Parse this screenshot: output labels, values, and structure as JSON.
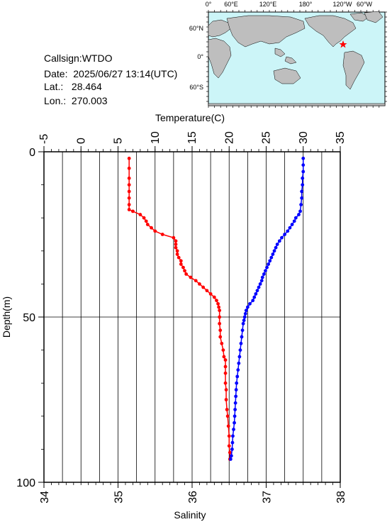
{
  "station": {
    "callsign_label": "Callsign:",
    "callsign": "WTDO",
    "date_label": "Date:",
    "date": "2025/06/27 13:14(UTC)",
    "lat_label": "Lat.:",
    "lat": "28.464",
    "lon_label": "Lon.:",
    "lon": "270.003"
  },
  "map": {
    "lon_ticks": [
      "0°",
      "60°E",
      "120°E",
      "180°",
      "120°W",
      "60°W"
    ],
    "lat_ticks": [
      "60°N",
      "0°",
      "60°S"
    ],
    "marker_color": "#ff0000",
    "ocean_color": "#ccf5f8",
    "land_color": "#bebebe"
  },
  "chart_data": {
    "type": "line",
    "title": "",
    "top_axis": {
      "label": "Temperature(C)",
      "range": [
        -5,
        35
      ],
      "ticks": [
        "-5",
        "0",
        "5",
        "10",
        "15",
        "20",
        "25",
        "30",
        "35"
      ]
    },
    "bottom_axis": {
      "label": "Salinity",
      "range": [
        34,
        38
      ],
      "ticks": [
        "34",
        "35",
        "36",
        "37",
        "38"
      ]
    },
    "y_axis": {
      "label": "Depth(m)",
      "range": [
        0,
        100
      ],
      "inverted": true,
      "ticks": [
        "0",
        "50",
        "100"
      ]
    },
    "grid": true,
    "series": [
      {
        "axis": "salinity",
        "color": "#ff0000",
        "points": [
          [
            35.15,
            2
          ],
          [
            35.15,
            5
          ],
          [
            35.15,
            8
          ],
          [
            35.15,
            10
          ],
          [
            35.15,
            12
          ],
          [
            35.15,
            14
          ],
          [
            35.15,
            16
          ],
          [
            35.15,
            17.5
          ],
          [
            35.2,
            18
          ],
          [
            35.3,
            19
          ],
          [
            35.35,
            20
          ],
          [
            35.38,
            21
          ],
          [
            35.4,
            22
          ],
          [
            35.45,
            23
          ],
          [
            35.5,
            24
          ],
          [
            35.6,
            25
          ],
          [
            35.75,
            26
          ],
          [
            35.78,
            27
          ],
          [
            35.78,
            28
          ],
          [
            35.78,
            29
          ],
          [
            35.8,
            30
          ],
          [
            35.8,
            31
          ],
          [
            35.82,
            32
          ],
          [
            35.85,
            33
          ],
          [
            35.85,
            34
          ],
          [
            35.88,
            35
          ],
          [
            35.9,
            36
          ],
          [
            35.92,
            37
          ],
          [
            35.98,
            38
          ],
          [
            36.05,
            39
          ],
          [
            36.1,
            40
          ],
          [
            36.15,
            41
          ],
          [
            36.2,
            42
          ],
          [
            36.25,
            43
          ],
          [
            36.3,
            44
          ],
          [
            36.33,
            45
          ],
          [
            36.35,
            46
          ],
          [
            36.36,
            47
          ],
          [
            36.37,
            48
          ],
          [
            36.37,
            50
          ],
          [
            36.37,
            52
          ],
          [
            36.38,
            54
          ],
          [
            36.38,
            56
          ],
          [
            36.4,
            58
          ],
          [
            36.42,
            60
          ],
          [
            36.43,
            62
          ],
          [
            36.45,
            63
          ],
          [
            36.45,
            65
          ],
          [
            36.45,
            67
          ],
          [
            36.45,
            70
          ],
          [
            36.46,
            72
          ],
          [
            36.46,
            75
          ],
          [
            36.47,
            78
          ],
          [
            36.48,
            80
          ],
          [
            36.49,
            83
          ],
          [
            36.5,
            86
          ],
          [
            36.5,
            89
          ],
          [
            36.51,
            91
          ],
          [
            36.51,
            93
          ]
        ]
      },
      {
        "axis": "temperature",
        "color": "#0000ff",
        "points": [
          [
            30,
            2
          ],
          [
            30,
            4
          ],
          [
            30,
            6
          ],
          [
            29.9,
            8
          ],
          [
            29.9,
            10
          ],
          [
            29.8,
            12
          ],
          [
            29.8,
            14
          ],
          [
            29.7,
            16
          ],
          [
            29.6,
            18
          ],
          [
            29.4,
            19
          ],
          [
            29,
            20
          ],
          [
            28.8,
            21
          ],
          [
            28.5,
            22
          ],
          [
            28.2,
            23
          ],
          [
            27.9,
            24
          ],
          [
            27.5,
            25
          ],
          [
            27.1,
            26
          ],
          [
            26.8,
            27
          ],
          [
            26.5,
            28
          ],
          [
            26.3,
            29
          ],
          [
            26.1,
            30
          ],
          [
            25.9,
            31
          ],
          [
            25.7,
            32
          ],
          [
            25.5,
            33
          ],
          [
            25.3,
            34
          ],
          [
            25.1,
            35
          ],
          [
            24.9,
            36
          ],
          [
            24.7,
            37
          ],
          [
            24.5,
            38
          ],
          [
            24.4,
            39
          ],
          [
            24.2,
            40
          ],
          [
            24,
            41
          ],
          [
            23.8,
            42
          ],
          [
            23.6,
            43
          ],
          [
            23.4,
            44
          ],
          [
            23.2,
            45
          ],
          [
            22.8,
            46
          ],
          [
            22.5,
            47
          ],
          [
            22.3,
            48
          ],
          [
            22.2,
            49
          ],
          [
            22.1,
            50
          ],
          [
            22,
            51
          ],
          [
            21.9,
            52
          ],
          [
            21.8,
            54
          ],
          [
            21.7,
            56
          ],
          [
            21.6,
            58
          ],
          [
            21.5,
            60
          ],
          [
            21.4,
            62
          ],
          [
            21.3,
            64
          ],
          [
            21.2,
            66
          ],
          [
            21.1,
            68
          ],
          [
            21,
            70
          ],
          [
            20.95,
            72
          ],
          [
            20.9,
            74
          ],
          [
            20.85,
            76
          ],
          [
            20.8,
            78
          ],
          [
            20.75,
            80
          ],
          [
            20.7,
            82
          ],
          [
            20.6,
            84
          ],
          [
            20.5,
            86
          ],
          [
            20.45,
            88
          ],
          [
            20.4,
            90
          ],
          [
            20.3,
            92
          ],
          [
            20.2,
            93
          ]
        ]
      }
    ]
  }
}
